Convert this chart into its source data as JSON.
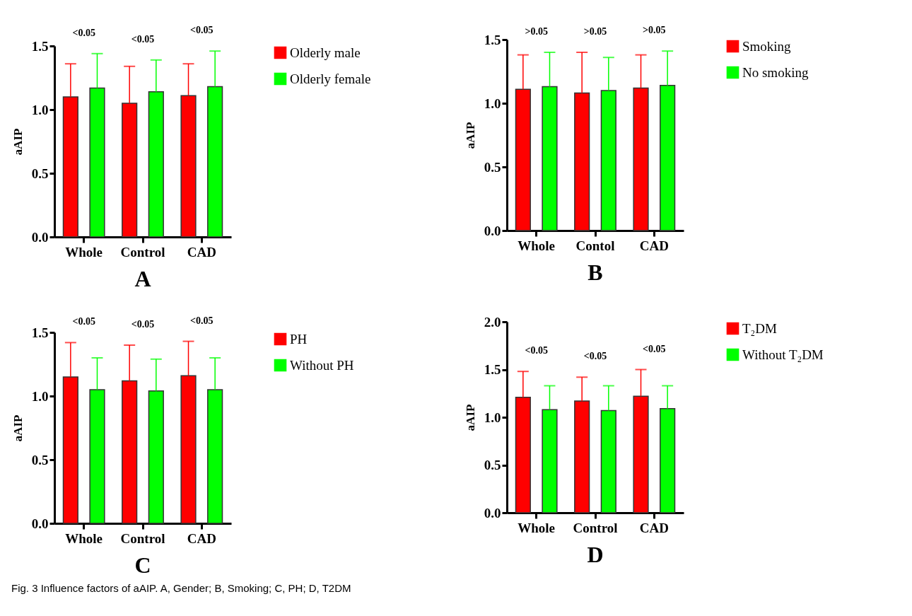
{
  "chart_data": [
    {
      "type": "bar",
      "title": "A",
      "ylabel": "aAIP",
      "categories": [
        "Whole",
        "Control",
        "CAD"
      ],
      "ylim": [
        0,
        1.5
      ],
      "yticks": [
        {
          "value": 0,
          "label": "0.0"
        },
        {
          "value": 0.5,
          "label": "0.5"
        },
        {
          "value": 1,
          "label": "1.0"
        },
        {
          "value": 1.5,
          "label": "1.5"
        }
      ],
      "legend": "right",
      "grid": false,
      "series": [
        {
          "name": "Olderly male",
          "color": "#ff0000",
          "values": [
            1.1,
            1.05,
            1.11
          ],
          "errors": [
            [
              1.1,
              1.36
            ],
            [
              1.05,
              1.34
            ],
            [
              1.11,
              1.36
            ]
          ]
        },
        {
          "name": "Olderly female",
          "color": "#00ff00",
          "values": [
            1.17,
            1.14,
            1.18
          ],
          "errors": [
            [
              1.17,
              1.44
            ],
            [
              1.14,
              1.39
            ],
            [
              1.18,
              1.46
            ]
          ]
        }
      ],
      "annotations": [
        "<0.05",
        "<0.05",
        "<0.05"
      ]
    },
    {
      "type": "bar",
      "title": "B",
      "ylabel": "aAIP",
      "categories": [
        "Whole",
        "Contol",
        "CAD"
      ],
      "ylim": [
        0,
        1.5
      ],
      "yticks": [
        {
          "value": 0,
          "label": "0.0"
        },
        {
          "value": 0.5,
          "label": "0.5"
        },
        {
          "value": 1,
          "label": "1.0"
        },
        {
          "value": 1.5,
          "label": "1.5"
        }
      ],
      "legend": "right",
      "grid": false,
      "series": [
        {
          "name": "Smoking",
          "color": "#ff0000",
          "values": [
            1.11,
            1.08,
            1.12
          ],
          "errors": [
            [
              1.11,
              1.38
            ],
            [
              1.08,
              1.4
            ],
            [
              1.12,
              1.38
            ]
          ]
        },
        {
          "name": "No smoking",
          "color": "#00ff00",
          "values": [
            1.13,
            1.1,
            1.14
          ],
          "errors": [
            [
              1.13,
              1.4
            ],
            [
              1.1,
              1.36
            ],
            [
              1.14,
              1.41
            ]
          ]
        }
      ],
      "annotations": [
        ">0.05",
        ">0.05",
        ">0.05"
      ]
    },
    {
      "type": "bar",
      "title": "C",
      "ylabel": "aAIP",
      "categories": [
        "Whole",
        "Control",
        "CAD"
      ],
      "ylim": [
        0,
        1.5
      ],
      "yticks": [
        {
          "value": 0,
          "label": "0.0"
        },
        {
          "value": 0.5,
          "label": "0.5"
        },
        {
          "value": 1,
          "label": "1.0"
        },
        {
          "value": 1.5,
          "label": "1.5"
        }
      ],
      "legend": "right",
      "grid": false,
      "series": [
        {
          "name": "PH",
          "color": "#ff0000",
          "values": [
            1.15,
            1.12,
            1.16
          ],
          "errors": [
            [
              1.15,
              1.42
            ],
            [
              1.12,
              1.4
            ],
            [
              1.16,
              1.43
            ]
          ]
        },
        {
          "name": "Without PH",
          "color": "#00ff00",
          "values": [
            1.05,
            1.04,
            1.05
          ],
          "errors": [
            [
              1.05,
              1.3
            ],
            [
              1.04,
              1.29
            ],
            [
              1.05,
              1.3
            ]
          ]
        }
      ],
      "annotations": [
        "<0.05",
        "<0.05",
        "<0.05"
      ]
    },
    {
      "type": "bar",
      "title": "D",
      "ylabel": "aAIP",
      "categories": [
        "Whole",
        "Control",
        "CAD"
      ],
      "ylim": [
        0,
        2
      ],
      "yticks": [
        {
          "value": 0,
          "label": "0.0"
        },
        {
          "value": 0.5,
          "label": "0.5"
        },
        {
          "value": 1,
          "label": "1.0"
        },
        {
          "value": 1.5,
          "label": "1.5"
        },
        {
          "value": 2,
          "label": "2.0"
        }
      ],
      "legend": "right",
      "grid": false,
      "series": [
        {
          "name": "T₂DM",
          "color": "#ff0000",
          "values": [
            1.21,
            1.17,
            1.22
          ],
          "errors": [
            [
              1.21,
              1.48
            ],
            [
              1.17,
              1.42
            ],
            [
              1.22,
              1.5
            ]
          ]
        },
        {
          "name": "Without T₂DM",
          "color": "#00ff00",
          "values": [
            1.08,
            1.07,
            1.09
          ],
          "errors": [
            [
              1.08,
              1.33
            ],
            [
              1.07,
              1.33
            ],
            [
              1.09,
              1.33
            ]
          ]
        }
      ],
      "annotations": [
        "<0.05",
        "<0.05",
        "<0.05",
        "Fig. 3 Influence factors of aAIP. A, Gender; B, Smoking; C, PH; D, T2DM"
      ]
    }
  ]
}
